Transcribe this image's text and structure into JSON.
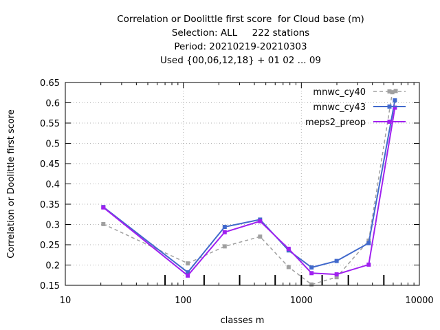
{
  "chart_data": {
    "type": "line",
    "title_lines": [
      "Correlation or Doolittle first score  for Cloud base (m)",
      "Selection: ALL     222 stations",
      "Period: 20210219-20210303",
      "Used {00,06,12,18} + 01 02 ... 09"
    ],
    "xlabel": "classes m",
    "ylabel": "Correlation or Doolittle first score",
    "xscale": "log",
    "xlim": [
      10,
      10000
    ],
    "ylim": [
      0.15,
      0.65
    ],
    "x_ticks": [
      10,
      100,
      1000,
      10000
    ],
    "x_tick_labels": [
      "10",
      "100",
      "1000",
      "10000"
    ],
    "y_ticks": [
      0.15,
      0.2,
      0.25,
      0.3,
      0.35,
      0.4,
      0.45,
      0.5,
      0.55,
      0.6,
      0.65
    ],
    "y_tick_labels": [
      "0.15",
      "0.2",
      "0.25",
      "0.3",
      "0.35",
      "0.4",
      "0.45",
      "0.5",
      "0.55",
      "0.6",
      "0.65"
    ],
    "grid": true,
    "legend_position": "top-right",
    "class_boundaries": [
      70,
      150,
      300,
      600,
      1000,
      1500,
      2500,
      5000
    ],
    "series": [
      {
        "name": "mnwc_cy40",
        "color": "#a0a0a0",
        "style": "dashed",
        "x": [
          21,
          109,
          224,
          447,
          780,
          1220,
          1990,
          3720,
          5900,
          6300
        ],
        "y": [
          0.301,
          0.204,
          0.246,
          0.27,
          0.195,
          0.152,
          0.17,
          0.26,
          0.626,
          0.629
        ]
      },
      {
        "name": "mnwc_cy43",
        "color": "#4169cc",
        "style": "solid",
        "x": [
          21,
          109,
          224,
          447,
          780,
          1220,
          1990,
          3720,
          6200
        ],
        "y": [
          0.343,
          0.182,
          0.294,
          0.312,
          0.236,
          0.194,
          0.21,
          0.254,
          0.606
        ]
      },
      {
        "name": "meps2_preop",
        "color": "#a020f0",
        "style": "solid",
        "x": [
          21,
          109,
          224,
          447,
          780,
          1220,
          1990,
          3720,
          6200
        ],
        "y": [
          0.342,
          0.174,
          0.281,
          0.308,
          0.24,
          0.18,
          0.177,
          0.201,
          0.588
        ]
      }
    ]
  }
}
